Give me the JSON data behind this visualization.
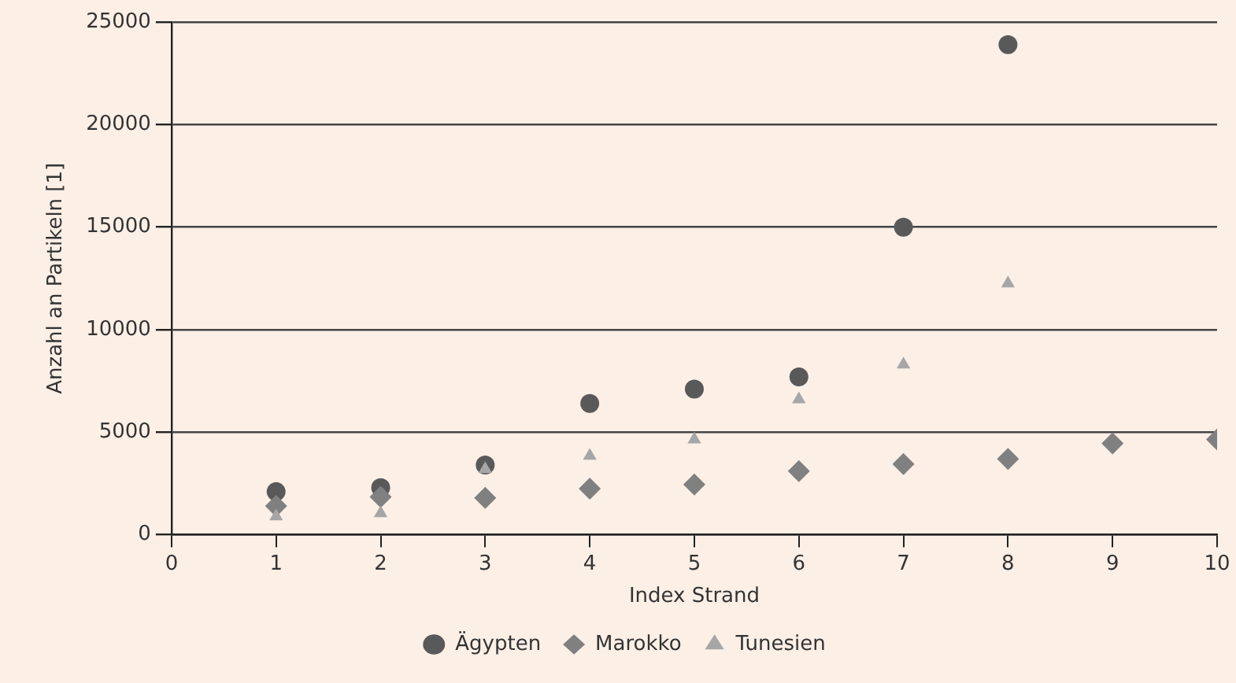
{
  "chart_data": {
    "type": "scatter",
    "xlabel": "Index Strand",
    "ylabel": "Anzahl an Partikeln [1]",
    "x": [
      1,
      2,
      3,
      4,
      5,
      6,
      7,
      8,
      9,
      10
    ],
    "series": [
      {
        "name": "Ägypten",
        "color": "#595959",
        "marker": "circle",
        "values": [
          2100,
          2300,
          3400,
          6400,
          7100,
          7700,
          15000,
          23900,
          null,
          null
        ]
      },
      {
        "name": "Marokko",
        "color": "#808080",
        "marker": "diamond",
        "values": [
          1400,
          1850,
          1800,
          2250,
          2450,
          3100,
          3450,
          3700,
          4450,
          4650
        ]
      },
      {
        "name": "Tunesien",
        "color": "#a6a6a6",
        "marker": "triangle",
        "values": [
          900,
          1050,
          3200,
          3850,
          4650,
          6600,
          8300,
          12250,
          null,
          null
        ]
      }
    ],
    "xlim": [
      0,
      10
    ],
    "xticks": [
      0,
      1,
      2,
      3,
      4,
      5,
      6,
      7,
      8,
      9,
      10
    ],
    "ylim": [
      0,
      25000
    ],
    "yticks": [
      0,
      5000,
      10000,
      15000,
      20000,
      25000
    ],
    "grid": "y",
    "legend": "bottom"
  }
}
